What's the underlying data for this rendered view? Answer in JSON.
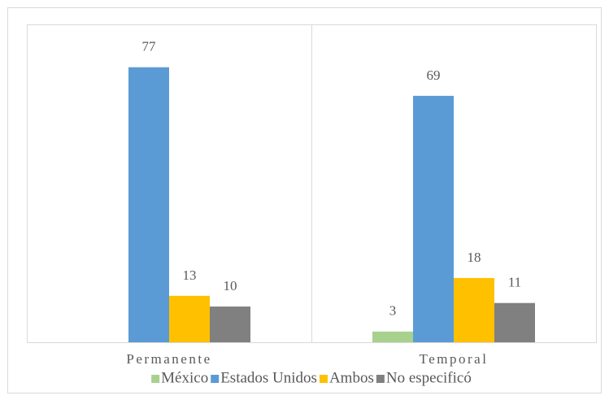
{
  "chart_data": {
    "type": "bar",
    "categories": [
      "Permanente",
      "Temporal"
    ],
    "series": [
      {
        "name": "México",
        "color": "#a9d18e",
        "values": [
          null,
          3
        ]
      },
      {
        "name": "Estados Unidos",
        "color": "#5b9bd5",
        "values": [
          77,
          69
        ]
      },
      {
        "name": "Ambos",
        "color": "#ffc000",
        "values": [
          13,
          18
        ]
      },
      {
        "name": "No especificó",
        "color": "#808080",
        "values": [
          10,
          11
        ]
      }
    ],
    "ylim": [
      0,
      89
    ],
    "legend": "bottom"
  }
}
